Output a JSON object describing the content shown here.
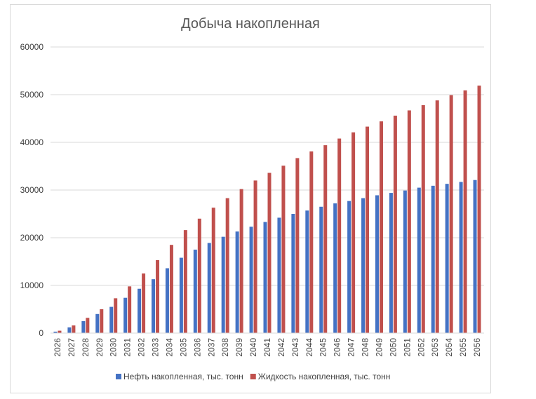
{
  "chart_data": {
    "type": "bar",
    "title": "Добыча накопленная",
    "xlabel": "",
    "ylabel": "",
    "ylim": [
      0,
      60000
    ],
    "yticks": [
      0,
      10000,
      20000,
      30000,
      40000,
      50000,
      60000
    ],
    "ytick_labels": [
      "0",
      "10000",
      "20000",
      "30000",
      "40000",
      "50000",
      "60000"
    ],
    "grid": true,
    "legend_position": "bottom",
    "categories": [
      "2026",
      "2027",
      "2028",
      "2029",
      "2030",
      "2031",
      "2032",
      "2033",
      "2034",
      "2035",
      "2036",
      "2037",
      "2038",
      "2039",
      "2040",
      "2041",
      "2042",
      "2043",
      "2044",
      "2045",
      "2046",
      "2047",
      "2048",
      "2049",
      "2050",
      "2051",
      "2052",
      "2053",
      "2054",
      "2055",
      "2056"
    ],
    "series": [
      {
        "name": "Нефть накопленная, тыс. тонн",
        "color": "#4472C4",
        "values": [
          300,
          1200,
          2500,
          4000,
          5500,
          7400,
          9300,
          11300,
          13600,
          15800,
          17500,
          18900,
          20200,
          21300,
          22300,
          23300,
          24200,
          25000,
          25700,
          26500,
          27200,
          27700,
          28300,
          28900,
          29400,
          29900,
          30500,
          30900,
          31300,
          31700,
          32100
        ]
      },
      {
        "name": "Жидкость накопленная, тыс. тонн",
        "color": "#C0504D",
        "values": [
          500,
          1600,
          3200,
          5000,
          7300,
          9800,
          12500,
          15300,
          18500,
          21600,
          24000,
          26300,
          28300,
          30200,
          32000,
          33600,
          35100,
          36700,
          38100,
          39400,
          40800,
          42100,
          43300,
          44400,
          45600,
          46700,
          47800,
          48800,
          49900,
          50900,
          51900
        ]
      }
    ]
  }
}
